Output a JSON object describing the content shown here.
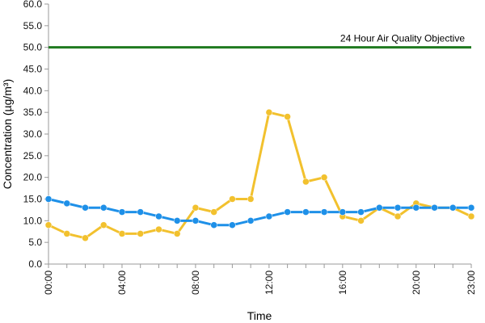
{
  "chart_data": {
    "type": "line",
    "xlabel": "Time",
    "ylabel": "Concentration (µg/m³)",
    "ylim": [
      0,
      60
    ],
    "yticks": [
      "0.0",
      "5.0",
      "10.0",
      "15.0",
      "20.0",
      "25.0",
      "30.0",
      "35.0",
      "40.0",
      "45.0",
      "50.0",
      "55.0",
      "60.0"
    ],
    "xlim": [
      0,
      23
    ],
    "xticks": [
      {
        "x": 0,
        "label": "00:00"
      },
      {
        "x": 4,
        "label": "04:00"
      },
      {
        "x": 8,
        "label": "08:00"
      },
      {
        "x": 12,
        "label": "12:00"
      },
      {
        "x": 16,
        "label": "16:00"
      },
      {
        "x": 20,
        "label": "20:00"
      },
      {
        "x": 23,
        "label": "23:00"
      }
    ],
    "x": [
      0,
      1,
      2,
      3,
      4,
      5,
      6,
      7,
      8,
      9,
      10,
      11,
      12,
      13,
      14,
      15,
      16,
      17,
      18,
      19,
      20,
      21,
      22,
      23
    ],
    "series": [
      {
        "color": "#F2C12E",
        "values": [
          9,
          7,
          6,
          9,
          7,
          7,
          8,
          7,
          13,
          12,
          15,
          15,
          35,
          34,
          19,
          20,
          11,
          10,
          13,
          11,
          14,
          13,
          13,
          11
        ]
      },
      {
        "color": "#1E90E8",
        "values": [
          15,
          14,
          13,
          13,
          12,
          12,
          11,
          10,
          10,
          9,
          9,
          10,
          11,
          12,
          12,
          12,
          12,
          12,
          13,
          13,
          13,
          13,
          13,
          13
        ]
      }
    ],
    "reference_line": {
      "value": 50,
      "label": "24 Hour Air Quality Objective",
      "color": "#1F7A1F"
    },
    "grid": false
  }
}
